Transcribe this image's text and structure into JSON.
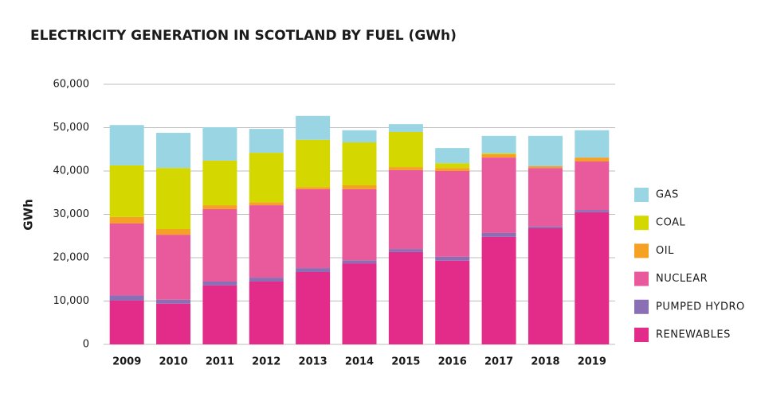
{
  "chart_data": {
    "type": "stacked_bar",
    "title": "ELECTRICITY GENERATION IN SCOTLAND BY FUEL (GWh)",
    "y_label": "GWh",
    "categories": [
      "2009",
      "2010",
      "2011",
      "2012",
      "2013",
      "2014",
      "2015",
      "2016",
      "2017",
      "2018",
      "2019"
    ],
    "series": [
      {
        "name": "RENEWABLES",
        "color": "#e32c89",
        "values": [
          10100,
          9400,
          13600,
          14500,
          16700,
          18700,
          21300,
          19300,
          24800,
          26800,
          30500
        ]
      },
      {
        "name": "PUMPED HYDRO",
        "color": "#8a6fb5",
        "values": [
          1200,
          900,
          900,
          900,
          900,
          700,
          700,
          900,
          900,
          400,
          500
        ]
      },
      {
        "name": "NUCLEAR",
        "color": "#e85a9c",
        "values": [
          16600,
          15000,
          16700,
          16700,
          18200,
          16400,
          18200,
          19800,
          17400,
          13500,
          11200
        ]
      },
      {
        "name": "OIL",
        "color": "#f4a124",
        "values": [
          1500,
          1300,
          900,
          700,
          500,
          900,
          700,
          700,
          800,
          400,
          900
        ]
      },
      {
        "name": "COAL",
        "color": "#d4d800",
        "values": [
          11900,
          14100,
          10300,
          11400,
          10900,
          9900,
          8100,
          1100,
          200,
          0,
          0
        ]
      },
      {
        "name": "GAS",
        "color": "#99d5e3",
        "values": [
          9300,
          8100,
          7700,
          5500,
          5500,
          2800,
          1800,
          3500,
          4000,
          7000,
          6300
        ]
      }
    ],
    "ylim": [
      0,
      60000
    ],
    "yticks": [
      0,
      {
        "value": 10000,
        "label": "10,000"
      },
      {
        "value": 20000,
        "label": "20,000"
      },
      {
        "value": 30000,
        "label": "30,000"
      },
      {
        "value": 40000,
        "label": "40,000"
      },
      {
        "value": 50000,
        "label": "50,000"
      },
      {
        "value": 60000,
        "label": "60,000"
      }
    ],
    "grid": true,
    "legend": "right"
  }
}
